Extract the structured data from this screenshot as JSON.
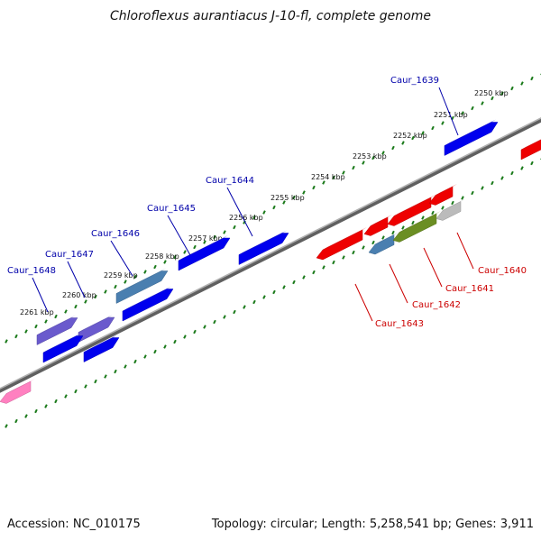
{
  "title": "Chloroflexus aurantiacus J-10-fl, complete genome",
  "footer": {
    "accession_text": "Accession: NC_010175",
    "stats_text": "Topology: circular; Length: 5,258,541 bp; Genes: 3,911"
  },
  "scale_labels": [
    "2250 kbp",
    "2251 kbp",
    "2252 kbp",
    "2253 kbp",
    "2254 kbp",
    "2255 kbp",
    "2256 kbp",
    "2257 kbp",
    "2258 kbp",
    "2259 kbp",
    "2260 kbp",
    "2261 kbp"
  ],
  "genes": [
    {
      "label": "Caur_1639",
      "strand": "forward",
      "color": "#0000ee"
    },
    {
      "label": "Caur_1644",
      "strand": "forward",
      "color": "#0000ee"
    },
    {
      "label": "Caur_1645",
      "strand": "forward",
      "color": "#4a7fb0"
    },
    {
      "label": "Caur_1646",
      "strand": "forward",
      "color": "#6a5acd"
    },
    {
      "label": "Caur_1647",
      "strand": "forward",
      "color": "#6a5acd"
    },
    {
      "label": "Caur_1648",
      "strand": "forward",
      "color": "#6a5acd"
    },
    {
      "label": "Caur_1640",
      "strand": "reverse",
      "color": "#bbbbbb"
    },
    {
      "label": "Caur_1641",
      "strand": "reverse",
      "color": "#6b8e23"
    },
    {
      "label": "Caur_1642",
      "strand": "reverse",
      "color": "#4a7fb0"
    },
    {
      "label": "Caur_1643",
      "strand": "reverse",
      "color": "#ee0000"
    }
  ],
  "colors": {
    "forward_gene": "#0000ee",
    "reverse_gene": "#ee0000",
    "backbone": "#808080",
    "scale_ticks": "#1a7a1a",
    "forward_label": "#0000aa",
    "reverse_label": "#cc0000",
    "other_strand_gene": "#ff80c0"
  }
}
